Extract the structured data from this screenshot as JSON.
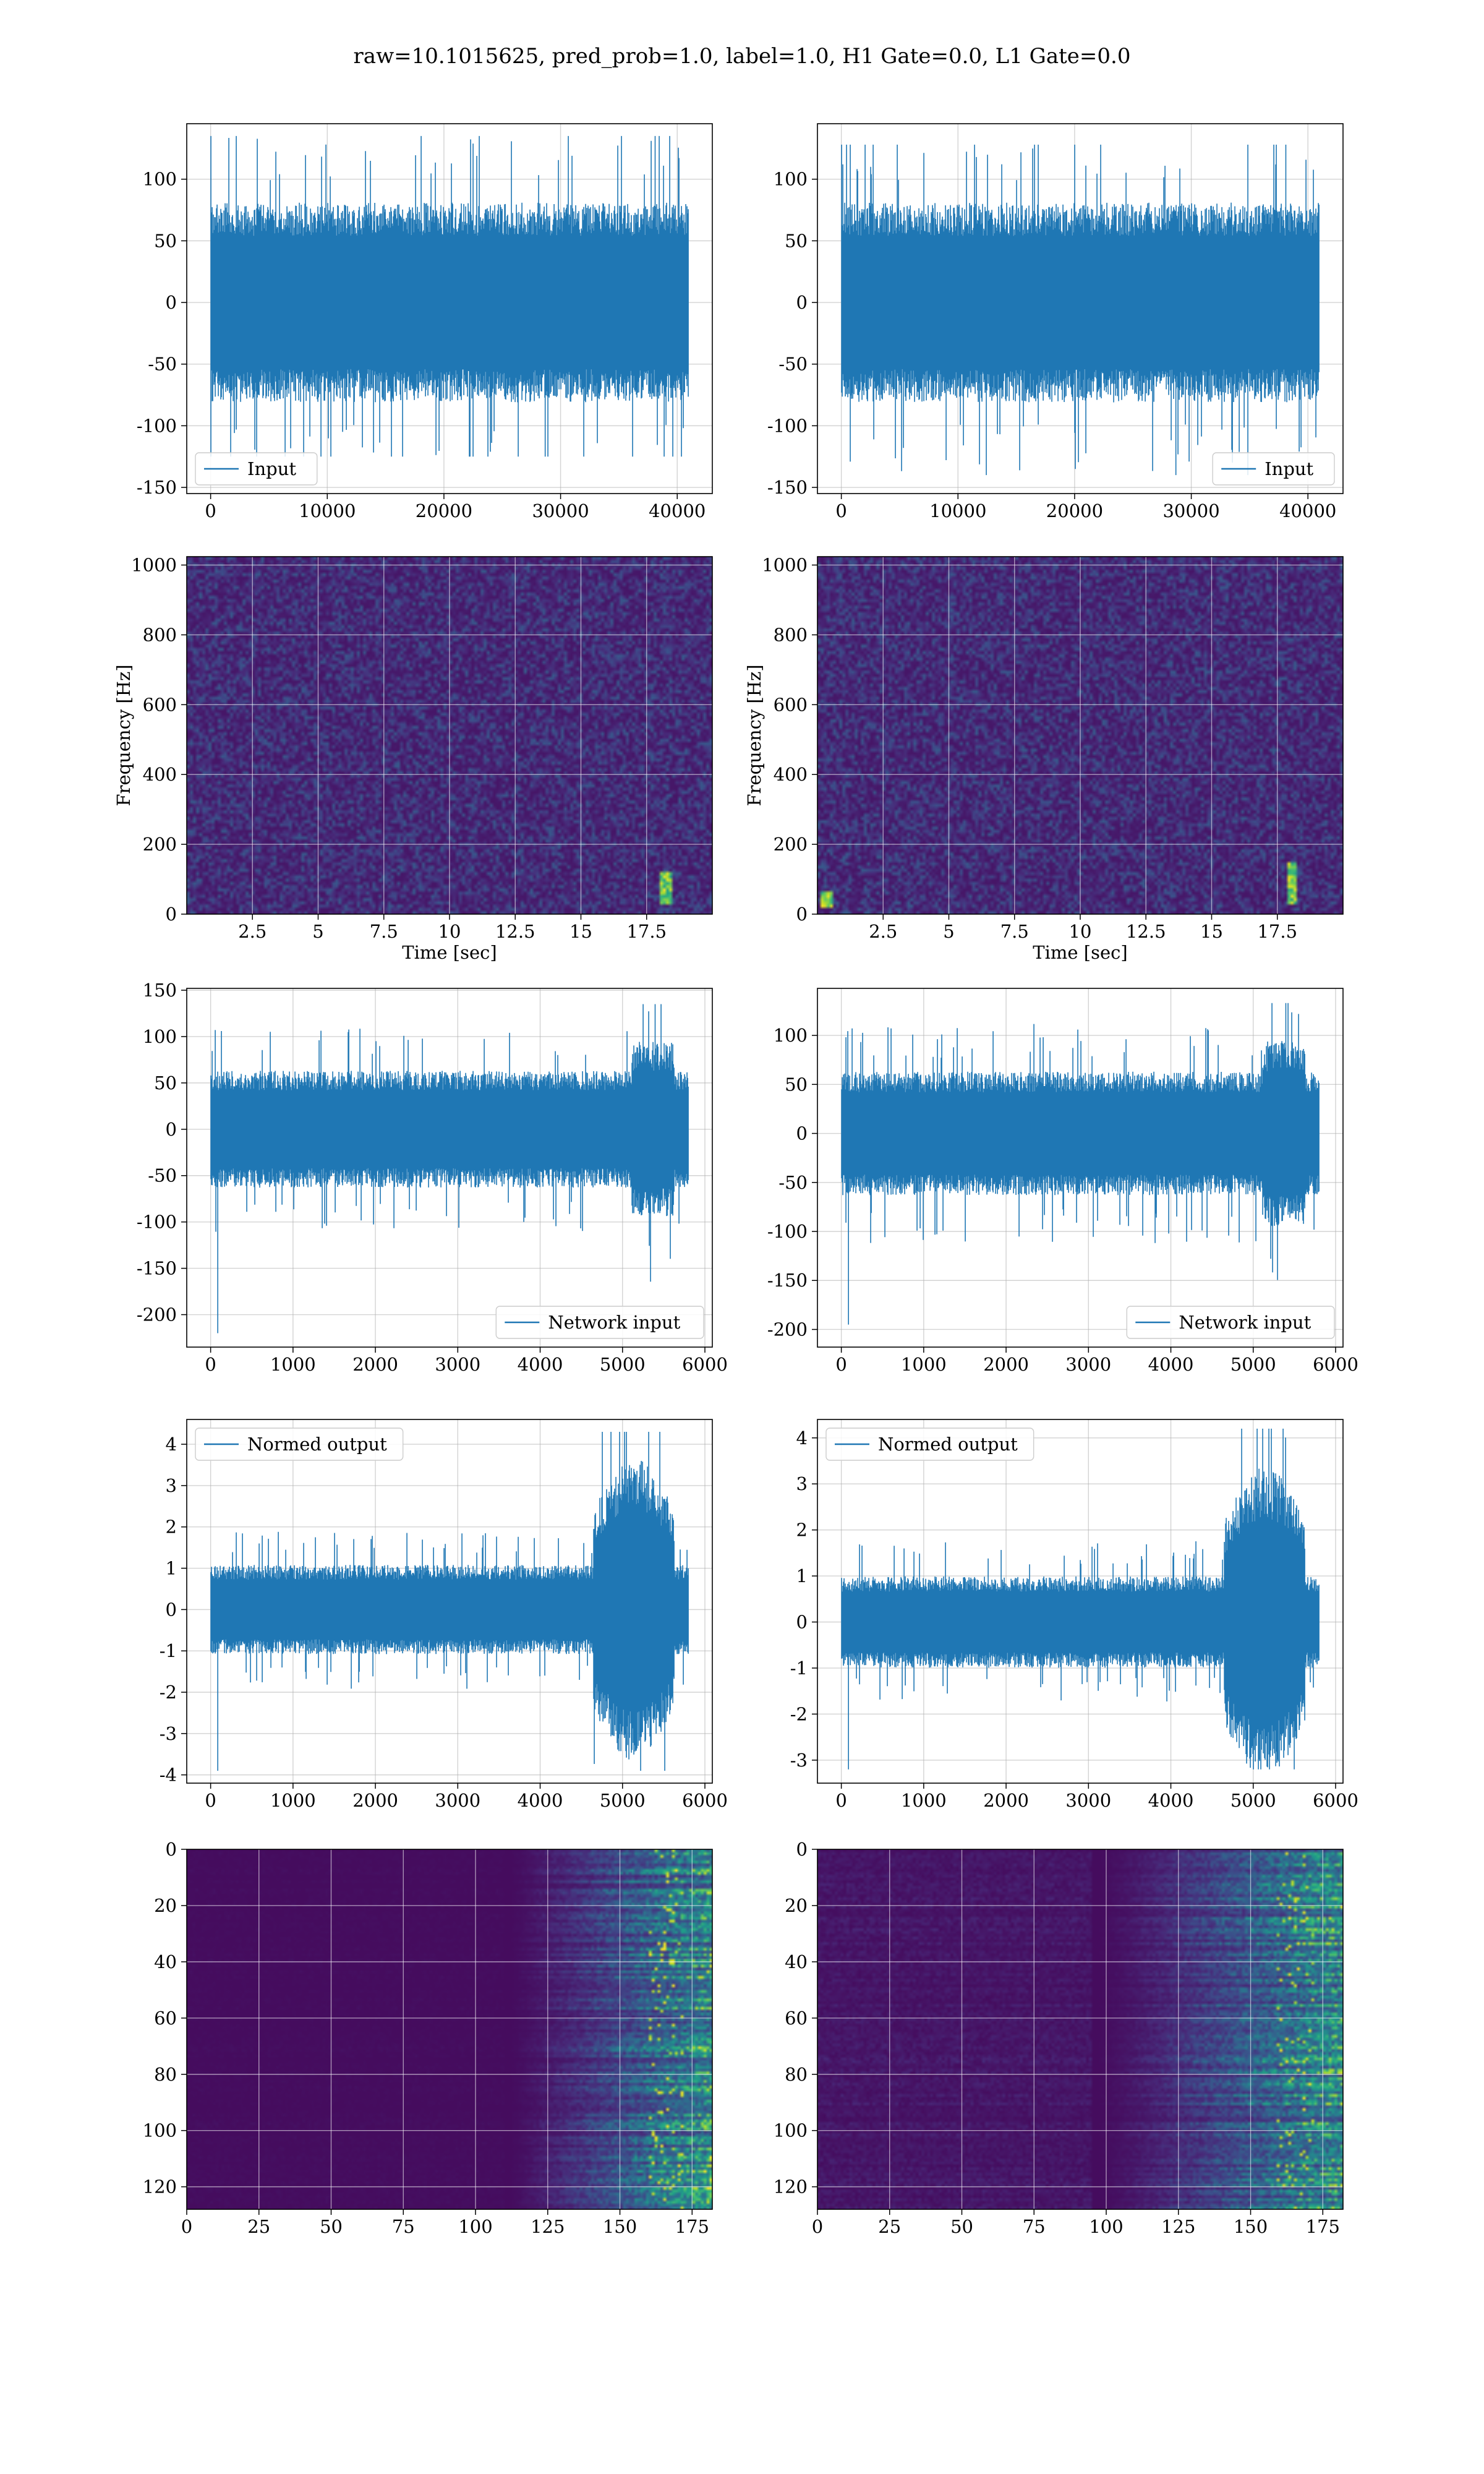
{
  "figure": {
    "title": "raw=10.1015625, pred_prob=1.0, label=1.0, H1 Gate=0.0, L1 Gate=0.0"
  },
  "colors": {
    "line": "#1f77b4",
    "grid": "#b0b0b0",
    "viridis_dark": "#440154",
    "viridis_mid": "#21918c",
    "viridis_bright": "#fde725"
  },
  "chart_data": [
    {
      "id": "input-h1",
      "type": "line",
      "series": [
        {
          "name": "Input",
          "x_range": [
            0,
            40960
          ],
          "amplitude_typical": 45,
          "min": -125,
          "max": 135
        }
      ],
      "xlim": [
        -2048,
        43008
      ],
      "ylim": [
        -155,
        145
      ],
      "xticks": [
        0,
        10000,
        20000,
        30000,
        40000
      ],
      "yticks": [
        -150,
        -100,
        -50,
        0,
        50,
        100
      ],
      "legend": "lower left",
      "grid": true
    },
    {
      "id": "input-l1",
      "type": "line",
      "series": [
        {
          "name": "Input",
          "x_range": [
            0,
            40960
          ],
          "amplitude_typical": 45,
          "min": -140,
          "max": 128
        }
      ],
      "xlim": [
        -2048,
        43008
      ],
      "ylim": [
        -155,
        145
      ],
      "xticks": [
        0,
        10000,
        20000,
        30000,
        40000
      ],
      "yticks": [
        -150,
        -100,
        -50,
        0,
        50,
        100
      ],
      "legend": "lower right",
      "grid": true
    },
    {
      "id": "spectrogram-h1",
      "type": "heatmap",
      "xlabel": "Time [sec]",
      "ylabel": "Frequency [Hz]",
      "xlim": [
        0,
        20
      ],
      "ylim": [
        0,
        1024
      ],
      "xticks": [
        2.5,
        5.0,
        7.5,
        10.0,
        12.5,
        15.0,
        17.5
      ],
      "yticks": [
        0,
        200,
        400,
        600,
        800,
        1000
      ],
      "grid": true,
      "hotspots": [
        {
          "t": 18.2,
          "f_low": 20,
          "f_high": 120
        }
      ]
    },
    {
      "id": "spectrogram-l1",
      "type": "heatmap",
      "xlabel": "Time [sec]",
      "ylabel": "Frequency [Hz]",
      "xlim": [
        0,
        20
      ],
      "ylim": [
        0,
        1024
      ],
      "xticks": [
        2.5,
        5.0,
        7.5,
        10.0,
        12.5,
        15.0,
        17.5
      ],
      "yticks": [
        0,
        200,
        400,
        600,
        800,
        1000
      ],
      "grid": true,
      "hotspots": [
        {
          "t": 18.0,
          "f_low": 20,
          "f_high": 140
        },
        {
          "t": 0.3,
          "f_low": 10,
          "f_high": 60
        }
      ]
    },
    {
      "id": "network-input-h1",
      "type": "line",
      "series": [
        {
          "name": "Network input",
          "x_range": [
            0,
            5800
          ],
          "amplitude_typical": 35,
          "min": -220,
          "max": 135
        }
      ],
      "xlim": [
        -290,
        6090
      ],
      "ylim": [
        -235,
        152
      ],
      "xticks": [
        0,
        1000,
        2000,
        3000,
        4000,
        5000,
        6000
      ],
      "yticks": [
        -200,
        -150,
        -100,
        -50,
        0,
        50,
        100,
        150
      ],
      "legend": "lower right",
      "grid": true
    },
    {
      "id": "network-input-l1",
      "type": "line",
      "series": [
        {
          "name": "Network input",
          "x_range": [
            0,
            5800
          ],
          "amplitude_typical": 35,
          "min": -195,
          "max": 133
        }
      ],
      "xlim": [
        -290,
        6090
      ],
      "ylim": [
        -218,
        148
      ],
      "xticks": [
        0,
        1000,
        2000,
        3000,
        4000,
        5000,
        6000
      ],
      "yticks": [
        -200,
        -150,
        -100,
        -50,
        0,
        50,
        100
      ],
      "legend": "lower right",
      "grid": true
    },
    {
      "id": "normed-output-h1",
      "type": "line",
      "series": [
        {
          "name": "Normed output",
          "x_range": [
            0,
            5800
          ],
          "amplitude_typical": 0.6,
          "min": -3.9,
          "max": 4.3
        }
      ],
      "xlim": [
        -290,
        6090
      ],
      "ylim": [
        -4.2,
        4.6
      ],
      "xticks": [
        0,
        1000,
        2000,
        3000,
        4000,
        5000,
        6000
      ],
      "yticks": [
        -4,
        -3,
        -2,
        -1,
        0,
        1,
        2,
        3,
        4
      ],
      "legend": "upper left",
      "grid": true
    },
    {
      "id": "normed-output-l1",
      "type": "line",
      "series": [
        {
          "name": "Normed output",
          "x_range": [
            0,
            5800
          ],
          "amplitude_typical": 0.55,
          "min": -3.2,
          "max": 4.2
        }
      ],
      "xlim": [
        -290,
        6090
      ],
      "ylim": [
        -3.5,
        4.4
      ],
      "xticks": [
        0,
        1000,
        2000,
        3000,
        4000,
        5000,
        6000
      ],
      "yticks": [
        -3,
        -2,
        -1,
        0,
        1,
        2,
        3,
        4
      ],
      "legend": "upper left",
      "grid": true
    },
    {
      "id": "feature-map-h1",
      "type": "heatmap",
      "xlim": [
        0,
        182
      ],
      "ylim": [
        128,
        0
      ],
      "xticks": [
        0,
        25,
        50,
        75,
        100,
        125,
        150,
        175
      ],
      "yticks": [
        0,
        20,
        40,
        60,
        80,
        100,
        120
      ],
      "grid": true,
      "activity_start_col": 110
    },
    {
      "id": "feature-map-l1",
      "type": "heatmap",
      "xlim": [
        0,
        182
      ],
      "ylim": [
        128,
        0
      ],
      "xticks": [
        0,
        25,
        50,
        75,
        100,
        125,
        150,
        175
      ],
      "yticks": [
        0,
        20,
        40,
        60,
        80,
        100,
        120
      ],
      "grid": true,
      "activity_start_col": 95
    }
  ]
}
